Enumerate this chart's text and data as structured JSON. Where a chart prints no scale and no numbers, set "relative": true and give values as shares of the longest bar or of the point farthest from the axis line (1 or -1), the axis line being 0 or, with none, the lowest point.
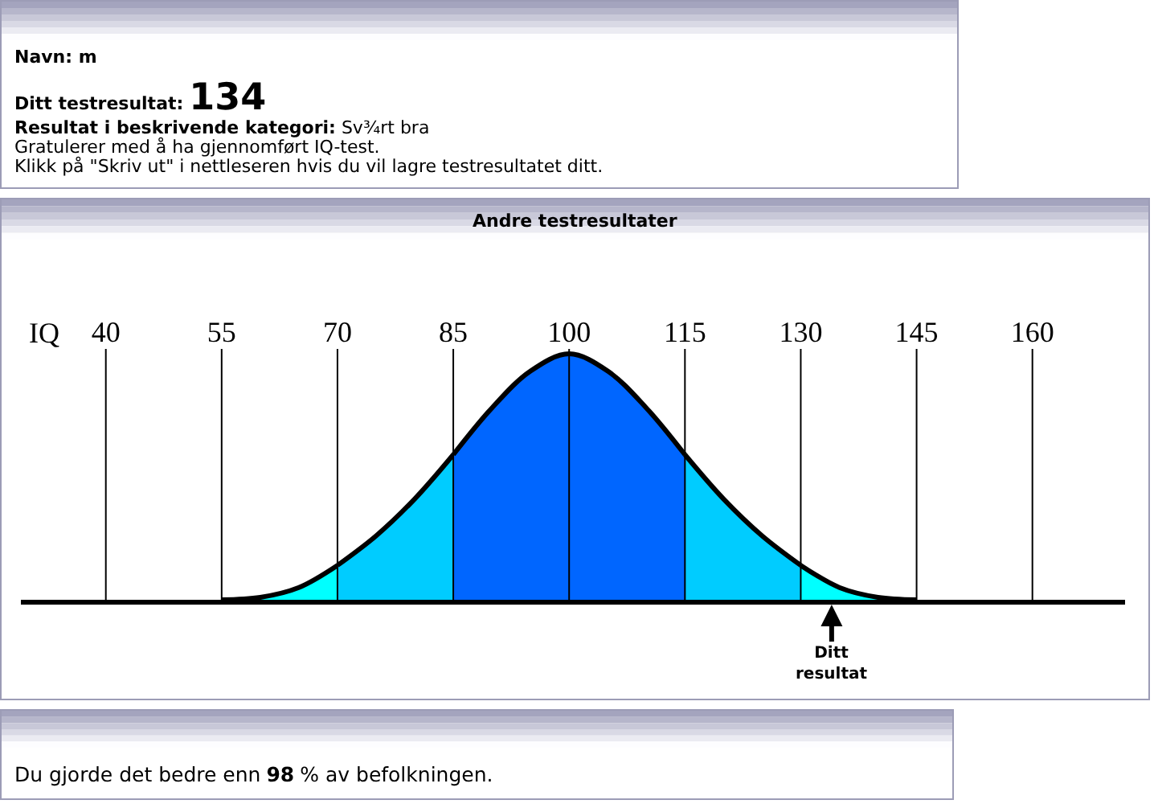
{
  "chart_data": [
    {
      "type": "other",
      "annotations": [
        "Navn: m",
        "Ditt testresultat:",
        "134",
        "Resultat i beskrivende kategori:",
        "Sv¾rt bra",
        "Gratulerer med å ha gjennomført IQ-test.",
        "Klikk på \"Skriv ut\" i nettleseren hvis du vil lagre testresultatet ditt."
      ]
    },
    {
      "type": "area",
      "title": "Andre testresultater",
      "xlabel": "IQ",
      "relative": true,
      "xlim": [
        29,
        172
      ],
      "xticks": [
        40,
        55,
        70,
        85,
        100,
        115,
        130,
        145,
        160
      ],
      "grid": "x",
      "tick_labels": "x",
      "series": [
        {
          "color": "#00ffff",
          "x": [
            55,
            60,
            65,
            70
          ],
          "values": [
            0,
            0.01,
            0.05,
            0.14
          ]
        },
        {
          "color": "#00ccff",
          "x": [
            70,
            75,
            80,
            85
          ],
          "values": [
            0.14,
            0.26,
            0.41,
            0.59
          ]
        },
        {
          "color": "#0066ff",
          "x": [
            85,
            90,
            95,
            100,
            105,
            110,
            115
          ],
          "values": [
            0.59,
            0.78,
            0.93,
            1,
            0.93,
            0.78,
            0.59
          ]
        },
        {
          "color": "#00ccff",
          "x": [
            115,
            120,
            125,
            130
          ],
          "values": [
            0.59,
            0.41,
            0.26,
            0.14
          ]
        },
        {
          "color": "#00ffff",
          "x": [
            130,
            135,
            140,
            145
          ],
          "values": [
            0.14,
            0.05,
            0.01,
            0
          ]
        }
      ],
      "annotations": [
        {
          "text": "Ditt resultat",
          "x": 134,
          "y": 0
        }
      ]
    },
    {
      "type": "other",
      "annotations": [
        "Du gjorde det bedre enn",
        "98",
        "% av befolkningen."
      ]
    }
  ]
}
